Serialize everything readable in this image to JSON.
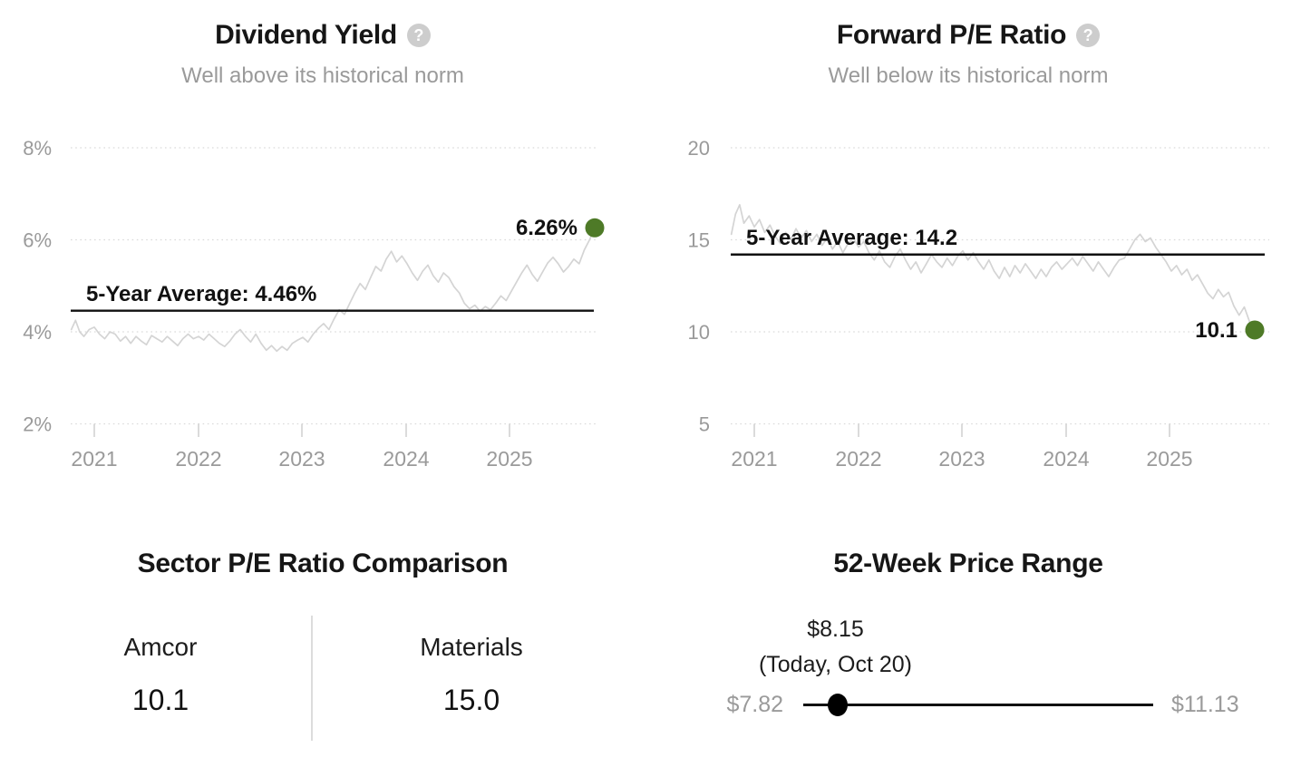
{
  "colors": {
    "accent_green": "#4e7a27",
    "series_gray": "#d4d4d4",
    "average_line_black": "#111111",
    "label_gray": "#9a9a9a",
    "grid_gray": "#dadada",
    "tick_gray": "#cfcfcf"
  },
  "chart_data": [
    {
      "id": "dividend-yield",
      "type": "line",
      "title": "Dividend Yield",
      "help_icon": "?",
      "subtitle": "Well above its historical norm",
      "ylim": [
        2,
        8
      ],
      "xlim": [
        2020.78,
        2025.82
      ],
      "grid": "horizontal-dotted",
      "legend": "none",
      "yticks": [
        {
          "value": 8,
          "label": "8%"
        },
        {
          "value": 6,
          "label": "6%"
        },
        {
          "value": 4,
          "label": "4%"
        },
        {
          "value": 2,
          "label": "2%"
        }
      ],
      "xticks": [
        {
          "value": 2021,
          "label": "2021"
        },
        {
          "value": 2022,
          "label": "2022"
        },
        {
          "value": 2023,
          "label": "2023"
        },
        {
          "value": 2024,
          "label": "2024"
        },
        {
          "value": 2025,
          "label": "2025"
        }
      ],
      "average_line": {
        "value": 4.46,
        "label": "5-Year Average: 4.46%"
      },
      "current_point": {
        "x": 2025.8,
        "value": 6.26,
        "label": "6.26%"
      },
      "series": [
        {
          "name": "Dividend Yield",
          "points": [
            [
              2020.78,
              4.05
            ],
            [
              2020.82,
              4.25
            ],
            [
              2020.86,
              4.0
            ],
            [
              2020.9,
              3.9
            ],
            [
              2020.95,
              4.05
            ],
            [
              2021.0,
              4.1
            ],
            [
              2021.05,
              3.95
            ],
            [
              2021.1,
              3.85
            ],
            [
              2021.15,
              4.0
            ],
            [
              2021.2,
              3.95
            ],
            [
              2021.25,
              3.8
            ],
            [
              2021.3,
              3.9
            ],
            [
              2021.35,
              3.75
            ],
            [
              2021.4,
              3.9
            ],
            [
              2021.45,
              3.8
            ],
            [
              2021.5,
              3.72
            ],
            [
              2021.55,
              3.92
            ],
            [
              2021.6,
              3.85
            ],
            [
              2021.65,
              3.78
            ],
            [
              2021.7,
              3.9
            ],
            [
              2021.75,
              3.8
            ],
            [
              2021.8,
              3.7
            ],
            [
              2021.85,
              3.85
            ],
            [
              2021.9,
              3.95
            ],
            [
              2021.95,
              3.85
            ],
            [
              2022.0,
              3.9
            ],
            [
              2022.05,
              3.82
            ],
            [
              2022.1,
              3.95
            ],
            [
              2022.15,
              3.85
            ],
            [
              2022.2,
              3.75
            ],
            [
              2022.25,
              3.68
            ],
            [
              2022.3,
              3.8
            ],
            [
              2022.35,
              3.95
            ],
            [
              2022.4,
              4.05
            ],
            [
              2022.45,
              3.9
            ],
            [
              2022.5,
              3.78
            ],
            [
              2022.55,
              3.95
            ],
            [
              2022.6,
              3.75
            ],
            [
              2022.65,
              3.6
            ],
            [
              2022.7,
              3.7
            ],
            [
              2022.75,
              3.58
            ],
            [
              2022.8,
              3.68
            ],
            [
              2022.85,
              3.6
            ],
            [
              2022.9,
              3.75
            ],
            [
              2022.95,
              3.82
            ],
            [
              2023.0,
              3.88
            ],
            [
              2023.05,
              3.78
            ],
            [
              2023.1,
              3.95
            ],
            [
              2023.15,
              4.08
            ],
            [
              2023.2,
              4.18
            ],
            [
              2023.25,
              4.05
            ],
            [
              2023.3,
              4.28
            ],
            [
              2023.35,
              4.48
            ],
            [
              2023.4,
              4.38
            ],
            [
              2023.45,
              4.62
            ],
            [
              2023.5,
              4.85
            ],
            [
              2023.55,
              5.05
            ],
            [
              2023.6,
              4.92
            ],
            [
              2023.65,
              5.18
            ],
            [
              2023.7,
              5.42
            ],
            [
              2023.75,
              5.32
            ],
            [
              2023.8,
              5.58
            ],
            [
              2023.85,
              5.75
            ],
            [
              2023.9,
              5.52
            ],
            [
              2023.95,
              5.65
            ],
            [
              2024.0,
              5.48
            ],
            [
              2024.05,
              5.28
            ],
            [
              2024.1,
              5.12
            ],
            [
              2024.15,
              5.32
            ],
            [
              2024.2,
              5.45
            ],
            [
              2024.25,
              5.22
            ],
            [
              2024.3,
              5.08
            ],
            [
              2024.35,
              5.28
            ],
            [
              2024.4,
              5.18
            ],
            [
              2024.45,
              4.98
            ],
            [
              2024.5,
              4.85
            ],
            [
              2024.55,
              4.62
            ],
            [
              2024.6,
              4.5
            ],
            [
              2024.65,
              4.58
            ],
            [
              2024.7,
              4.45
            ],
            [
              2024.75,
              4.55
            ],
            [
              2024.8,
              4.48
            ],
            [
              2024.85,
              4.62
            ],
            [
              2024.9,
              4.78
            ],
            [
              2024.95,
              4.68
            ],
            [
              2025.0,
              4.88
            ],
            [
              2025.05,
              5.08
            ],
            [
              2025.1,
              5.28
            ],
            [
              2025.15,
              5.45
            ],
            [
              2025.2,
              5.25
            ],
            [
              2025.25,
              5.1
            ],
            [
              2025.3,
              5.3
            ],
            [
              2025.35,
              5.5
            ],
            [
              2025.4,
              5.62
            ],
            [
              2025.45,
              5.48
            ],
            [
              2025.5,
              5.3
            ],
            [
              2025.55,
              5.42
            ],
            [
              2025.6,
              5.58
            ],
            [
              2025.65,
              5.48
            ],
            [
              2025.7,
              5.78
            ],
            [
              2025.75,
              6.0
            ],
            [
              2025.8,
              6.26
            ]
          ]
        }
      ]
    },
    {
      "id": "forward-pe-ratio",
      "type": "line",
      "title": "Forward P/E Ratio",
      "help_icon": "?",
      "subtitle": "Well below its historical norm",
      "ylim": [
        5,
        20
      ],
      "xlim": [
        2020.78,
        2025.82
      ],
      "grid": "horizontal-dotted",
      "legend": "none",
      "yticks": [
        {
          "value": 20,
          "label": "20"
        },
        {
          "value": 15,
          "label": "15"
        },
        {
          "value": 10,
          "label": "10"
        },
        {
          "value": 5,
          "label": "5"
        }
      ],
      "xticks": [
        {
          "value": 2021,
          "label": "2021"
        },
        {
          "value": 2022,
          "label": "2022"
        },
        {
          "value": 2023,
          "label": "2023"
        },
        {
          "value": 2024,
          "label": "2024"
        },
        {
          "value": 2025,
          "label": "2025"
        }
      ],
      "average_line": {
        "value": 14.2,
        "label": "5-Year Average: 14.2"
      },
      "current_point": {
        "x": 2025.8,
        "value": 10.1,
        "label": "10.1"
      },
      "series": [
        {
          "name": "Forward P/E Ratio",
          "points": [
            [
              2020.78,
              15.3
            ],
            [
              2020.82,
              16.4
            ],
            [
              2020.86,
              16.9
            ],
            [
              2020.9,
              15.9
            ],
            [
              2020.95,
              16.3
            ],
            [
              2021.0,
              15.7
            ],
            [
              2021.05,
              16.1
            ],
            [
              2021.1,
              15.4
            ],
            [
              2021.15,
              15.8
            ],
            [
              2021.2,
              15.2
            ],
            [
              2021.25,
              14.8
            ],
            [
              2021.3,
              15.4
            ],
            [
              2021.35,
              15.0
            ],
            [
              2021.4,
              15.6
            ],
            [
              2021.45,
              15.1
            ],
            [
              2021.5,
              15.5
            ],
            [
              2021.55,
              14.9
            ],
            [
              2021.6,
              15.3
            ],
            [
              2021.65,
              14.7
            ],
            [
              2021.7,
              15.1
            ],
            [
              2021.75,
              14.5
            ],
            [
              2021.8,
              14.9
            ],
            [
              2021.85,
              14.3
            ],
            [
              2021.9,
              14.8
            ],
            [
              2021.95,
              15.1
            ],
            [
              2022.0,
              14.6
            ],
            [
              2022.05,
              14.9
            ],
            [
              2022.1,
              14.3
            ],
            [
              2022.15,
              13.9
            ],
            [
              2022.2,
              14.4
            ],
            [
              2022.25,
              13.8
            ],
            [
              2022.3,
              13.5
            ],
            [
              2022.35,
              14.1
            ],
            [
              2022.4,
              14.5
            ],
            [
              2022.45,
              13.9
            ],
            [
              2022.5,
              13.4
            ],
            [
              2022.55,
              13.8
            ],
            [
              2022.6,
              13.2
            ],
            [
              2022.65,
              13.7
            ],
            [
              2022.7,
              14.2
            ],
            [
              2022.75,
              13.8
            ],
            [
              2022.8,
              13.5
            ],
            [
              2022.85,
              14.0
            ],
            [
              2022.9,
              13.6
            ],
            [
              2022.95,
              14.1
            ],
            [
              2023.0,
              14.4
            ],
            [
              2023.05,
              13.9
            ],
            [
              2023.1,
              14.3
            ],
            [
              2023.15,
              13.8
            ],
            [
              2023.2,
              13.4
            ],
            [
              2023.25,
              13.9
            ],
            [
              2023.3,
              13.3
            ],
            [
              2023.35,
              12.9
            ],
            [
              2023.4,
              13.5
            ],
            [
              2023.45,
              13.0
            ],
            [
              2023.5,
              13.6
            ],
            [
              2023.55,
              13.2
            ],
            [
              2023.6,
              13.7
            ],
            [
              2023.65,
              13.3
            ],
            [
              2023.7,
              12.9
            ],
            [
              2023.75,
              13.4
            ],
            [
              2023.8,
              13.0
            ],
            [
              2023.85,
              13.5
            ],
            [
              2023.9,
              13.8
            ],
            [
              2023.95,
              13.4
            ],
            [
              2024.0,
              13.7
            ],
            [
              2024.05,
              14.0
            ],
            [
              2024.1,
              13.6
            ],
            [
              2024.15,
              14.1
            ],
            [
              2024.2,
              13.7
            ],
            [
              2024.25,
              13.3
            ],
            [
              2024.3,
              13.8
            ],
            [
              2024.35,
              13.4
            ],
            [
              2024.4,
              13.0
            ],
            [
              2024.45,
              13.5
            ],
            [
              2024.5,
              13.9
            ],
            [
              2024.55,
              14.0
            ],
            [
              2024.6,
              14.5
            ],
            [
              2024.65,
              15.0
            ],
            [
              2024.7,
              15.3
            ],
            [
              2024.75,
              14.9
            ],
            [
              2024.8,
              15.1
            ],
            [
              2024.85,
              14.6
            ],
            [
              2024.9,
              14.2
            ],
            [
              2024.95,
              13.8
            ],
            [
              2025.0,
              13.3
            ],
            [
              2025.05,
              13.6
            ],
            [
              2025.1,
              13.1
            ],
            [
              2025.15,
              13.4
            ],
            [
              2025.2,
              12.8
            ],
            [
              2025.25,
              13.1
            ],
            [
              2025.3,
              12.6
            ],
            [
              2025.35,
              12.1
            ],
            [
              2025.4,
              11.8
            ],
            [
              2025.45,
              12.3
            ],
            [
              2025.5,
              11.9
            ],
            [
              2025.55,
              12.15
            ],
            [
              2025.6,
              11.4
            ],
            [
              2025.65,
              10.9
            ],
            [
              2025.7,
              11.35
            ],
            [
              2025.75,
              10.55
            ],
            [
              2025.8,
              10.1
            ]
          ]
        }
      ]
    },
    {
      "id": "sector-pe-comparison",
      "type": "table",
      "title": "Sector P/E Ratio Comparison",
      "columns": [
        {
          "label": "Amcor",
          "value": "10.1"
        },
        {
          "label": "Materials",
          "value": "15.0"
        }
      ]
    },
    {
      "id": "52-week-price-range",
      "type": "range",
      "title": "52-Week Price Range",
      "min": {
        "value": 7.82,
        "label": "$7.82"
      },
      "max": {
        "value": 11.13,
        "label": "$11.13"
      },
      "current": {
        "value": 8.15,
        "label": "$8.15",
        "sublabel": "(Today, Oct 20)"
      }
    }
  ]
}
